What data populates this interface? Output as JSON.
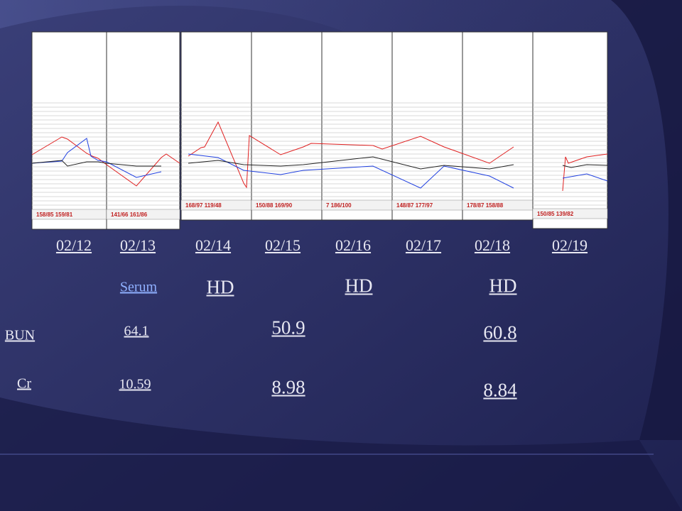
{
  "panels": [
    {
      "date": "02/12",
      "caption": "158/85 159/81"
    },
    {
      "date": "02/13",
      "caption": "141/66 161/86"
    },
    {
      "date": "02/14",
      "caption": "168/97 119/48"
    },
    {
      "date": "02/15",
      "caption": "150/88 169/90"
    },
    {
      "date": "02/16",
      "caption": "7 186/100"
    },
    {
      "date": "02/17",
      "caption": "148/87 177/97"
    },
    {
      "date": "02/18",
      "caption": "178/87 158/88"
    },
    {
      "date": "02/19",
      "caption": "150/85 139/82"
    }
  ],
  "serum_label": "Serum",
  "hd_labels": [
    "HD",
    "HD",
    "HD"
  ],
  "rows": [
    {
      "label": "BUN",
      "values": [
        "64.1",
        "50.9",
        "60.8"
      ]
    },
    {
      "label": "Cr",
      "values": [
        "10.59",
        "8.98",
        "8.84"
      ]
    }
  ]
}
